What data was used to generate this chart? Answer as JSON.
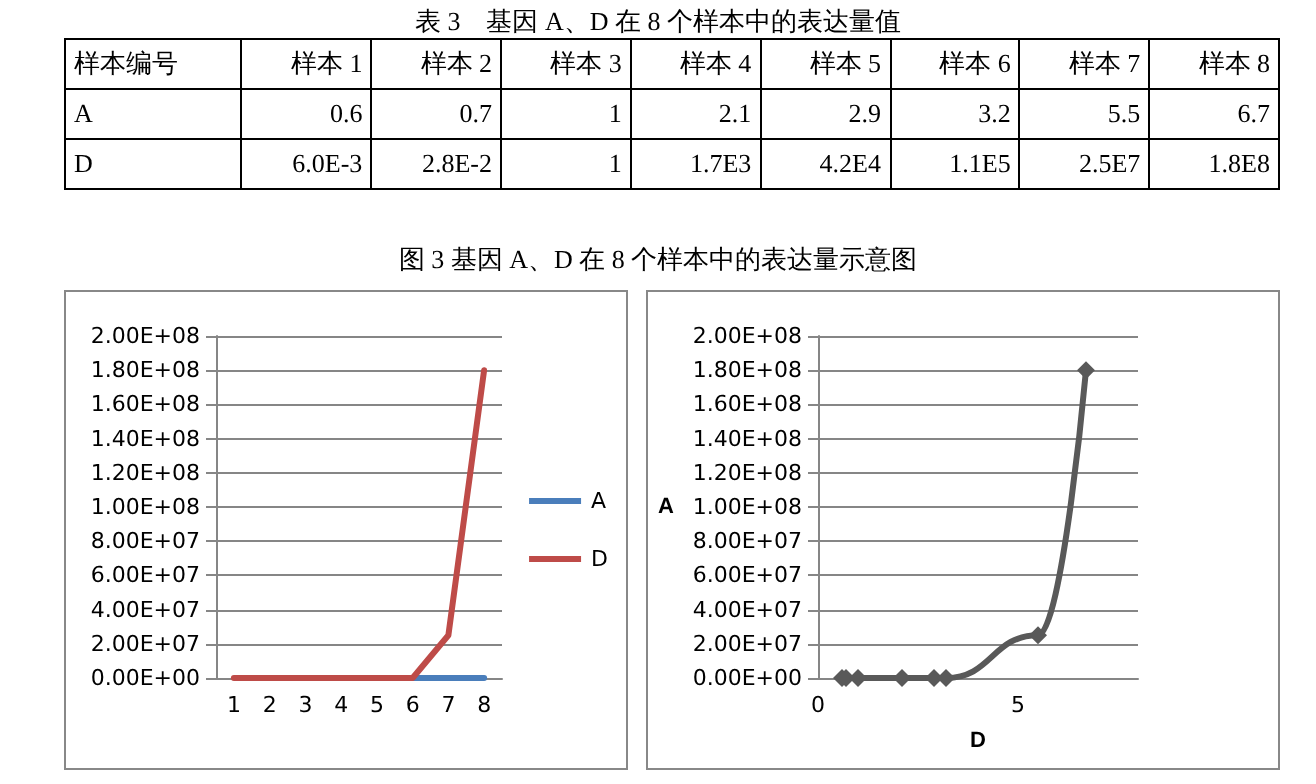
{
  "chart_data": [
    {
      "type": "other",
      "title": "表 3　基因 A、D 在 8 个样本中的表达量值",
      "categories": [
        "样本编号",
        "样本 1",
        "样本 2",
        "样本 3",
        "样本 4",
        "样本 5",
        "样本 6",
        "样本 7",
        "样本 8"
      ],
      "annotations": [
        "A",
        "0.6",
        "0.7",
        "1",
        "2.1",
        "2.9",
        "3.2",
        "5.5",
        "6.7",
        "D",
        "6.0E-3",
        "2.8E-2",
        "1",
        "1.7E3",
        "4.2E4",
        "1.1E5",
        "2.5E7",
        "1.8E8"
      ]
    },
    {
      "type": "line",
      "title": "图 3 基因 A、D 在 8 个样本中的表达量示意图",
      "categories": [
        "1",
        "2",
        "3",
        "4",
        "5",
        "6",
        "7",
        "8"
      ],
      "series": [
        {
          "name": "A",
          "color": "#4a7ebb",
          "values": [
            null,
            null,
            null,
            null,
            null,
            0,
            0,
            0
          ]
        },
        {
          "name": "D",
          "color": "#be4b48",
          "values": [
            0,
            0,
            0,
            0,
            0,
            0,
            25000000,
            180000000
          ]
        }
      ],
      "ylim": [
        0,
        200000000
      ],
      "yticks": [
        {
          "value": 0,
          "label": "0.00E+00"
        },
        {
          "value": 20000000,
          "label": "2.00E+07"
        },
        {
          "value": 40000000,
          "label": "4.00E+07"
        },
        {
          "value": 60000000,
          "label": "6.00E+07"
        },
        {
          "value": 80000000,
          "label": "8.00E+07"
        },
        {
          "value": 100000000,
          "label": "1.00E+08"
        },
        {
          "value": 120000000,
          "label": "1.20E+08"
        },
        {
          "value": 140000000,
          "label": "1.40E+08"
        },
        {
          "value": 160000000,
          "label": "1.60E+08"
        },
        {
          "value": 180000000,
          "label": "1.80E+08"
        },
        {
          "value": 200000000,
          "label": "2.00E+08"
        }
      ],
      "grid": "y",
      "legend": "right",
      "marker": "none"
    },
    {
      "type": "line",
      "xlabel": "D",
      "ylabel": "A",
      "x": [
        0.6,
        0.7,
        1,
        2.1,
        2.9,
        3.2,
        5.5,
        6.7
      ],
      "series": [
        {
          "color": "#595959",
          "values": [
            0,
            0,
            0,
            0,
            0,
            0,
            25000000,
            180000000
          ]
        }
      ],
      "xlim": [
        0,
        8
      ],
      "xticks": [
        0,
        5
      ],
      "ylim": [
        0,
        200000000
      ],
      "yticks": [
        {
          "value": 0,
          "label": "0.00E+00"
        },
        {
          "value": 20000000,
          "label": "2.00E+07"
        },
        {
          "value": 40000000,
          "label": "4.00E+07"
        },
        {
          "value": 60000000,
          "label": "6.00E+07"
        },
        {
          "value": 80000000,
          "label": "8.00E+07"
        },
        {
          "value": 100000000,
          "label": "1.00E+08"
        },
        {
          "value": 120000000,
          "label": "1.20E+08"
        },
        {
          "value": 140000000,
          "label": "1.40E+08"
        },
        {
          "value": 160000000,
          "label": "1.60E+08"
        },
        {
          "value": 180000000,
          "label": "1.80E+08"
        },
        {
          "value": 200000000,
          "label": "2.00E+08"
        }
      ],
      "grid": "y",
      "marker": "diamond"
    }
  ]
}
